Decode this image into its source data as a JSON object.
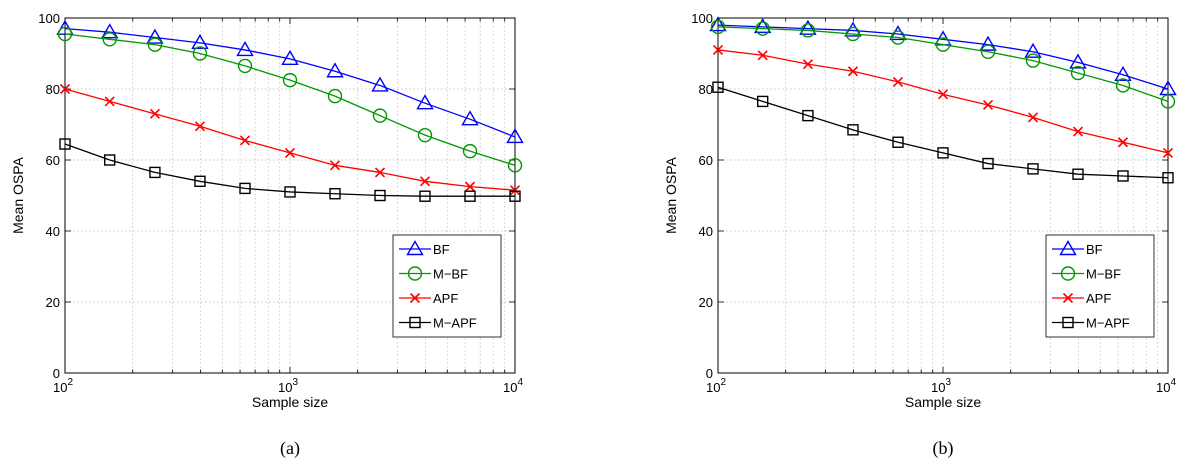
{
  "chart_data": [
    {
      "type": "line",
      "caption": "(a)",
      "xlabel": "Sample size",
      "ylabel": "Mean OSPA",
      "xscale": "log",
      "xlim": [
        100,
        10000
      ],
      "ylim": [
        0,
        100
      ],
      "grid": true,
      "legend_position": "bottom-right",
      "x_tick_labels": [
        {
          "base": "10",
          "exp": "2"
        },
        {
          "base": "10",
          "exp": "3"
        },
        {
          "base": "10",
          "exp": "4"
        }
      ],
      "y_tick_labels": [
        "0",
        "20",
        "40",
        "60",
        "80",
        "100"
      ],
      "x": [
        100,
        158,
        251,
        398,
        631,
        1000,
        1585,
        2512,
        3981,
        6310,
        10000
      ],
      "series": [
        {
          "name": "BF",
          "color": "#0000ff",
          "marker": "triangle",
          "values": [
            97,
            96,
            94.5,
            93,
            91,
            88.5,
            85,
            81,
            76,
            71.5,
            66.5
          ]
        },
        {
          "name": "M−BF",
          "color": "#009900",
          "marker": "circle",
          "values": [
            95.5,
            94,
            92.5,
            90,
            86.5,
            82.5,
            78,
            72.5,
            67,
            62.5,
            58.5
          ]
        },
        {
          "name": "APF",
          "color": "#ff0000",
          "marker": "x",
          "values": [
            80,
            76.5,
            73,
            69.5,
            65.5,
            62,
            58.5,
            56.5,
            54,
            52.5,
            51.5
          ]
        },
        {
          "name": "M−APF",
          "color": "#000000",
          "marker": "square",
          "values": [
            64.5,
            60,
            56.5,
            54,
            52,
            51,
            50.5,
            50,
            49.8,
            49.8,
            49.8
          ]
        }
      ]
    },
    {
      "type": "line",
      "caption": "(b)",
      "xlabel": "Sample size",
      "ylabel": "Mean OSPA",
      "xscale": "log",
      "xlim": [
        100,
        10000
      ],
      "ylim": [
        0,
        100
      ],
      "grid": true,
      "legend_position": "bottom-right",
      "x_tick_labels": [
        {
          "base": "10",
          "exp": "2"
        },
        {
          "base": "10",
          "exp": "3"
        },
        {
          "base": "10",
          "exp": "4"
        }
      ],
      "y_tick_labels": [
        "0",
        "20",
        "40",
        "60",
        "80",
        "100"
      ],
      "x": [
        100,
        158,
        251,
        398,
        631,
        1000,
        1585,
        2512,
        3981,
        6310,
        10000
      ],
      "series": [
        {
          "name": "BF",
          "color": "#0000ff",
          "marker": "triangle",
          "values": [
            98,
            97.5,
            97,
            96.5,
            95.5,
            94,
            92.5,
            90.5,
            87.5,
            84,
            80
          ]
        },
        {
          "name": "M−BF",
          "color": "#009900",
          "marker": "circle",
          "values": [
            97.5,
            97,
            96.5,
            95.5,
            94.5,
            92.5,
            90.5,
            88,
            84.5,
            81,
            76.5
          ]
        },
        {
          "name": "APF",
          "color": "#ff0000",
          "marker": "x",
          "values": [
            91,
            89.5,
            87,
            85,
            82,
            78.5,
            75.5,
            72,
            68,
            65,
            62
          ]
        },
        {
          "name": "M−APF",
          "color": "#000000",
          "marker": "square",
          "values": [
            80.5,
            76.5,
            72.5,
            68.5,
            65,
            62,
            59,
            57.5,
            56,
            55.5,
            55
          ]
        }
      ]
    }
  ]
}
